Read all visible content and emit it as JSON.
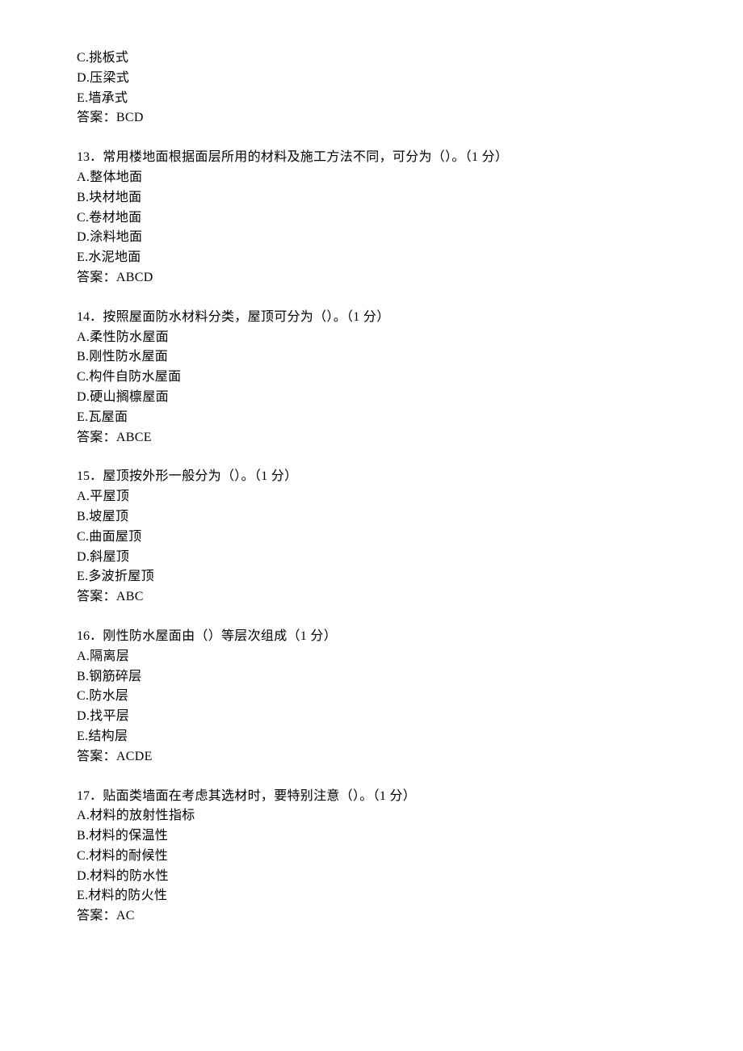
{
  "text_color": "#000000",
  "background_color": "#ffffff",
  "base_fontsize": 16,
  "font_family": "SimSun",
  "q12_tail": {
    "options": [
      "C.挑板式",
      "D.压梁式",
      "E.墙承式"
    ],
    "answer": "答案：BCD"
  },
  "questions": [
    {
      "number": "13",
      "stem": "．常用楼地面根据面层所用的材料及施工方法不同，可分为（）。（1 分）",
      "options": [
        "A.整体地面",
        "B.块材地面",
        "C.卷材地面",
        "D.涂料地面",
        "E.水泥地面"
      ],
      "answer": "答案：ABCD"
    },
    {
      "number": "14",
      "stem": "．按照屋面防水材料分类，屋顶可分为（）。（1 分）",
      "options": [
        "A.柔性防水屋面",
        "B.刚性防水屋面",
        "C.构件自防水屋面",
        "D.硬山搁檩屋面",
        "E.瓦屋面"
      ],
      "answer": "答案：ABCE"
    },
    {
      "number": "15",
      "stem": "．屋顶按外形一般分为（）。（1 分）",
      "options": [
        "A.平屋顶",
        "B.坡屋顶",
        "C.曲面屋顶",
        "D.斜屋顶",
        "E.多波折屋顶"
      ],
      "answer": "答案：ABC"
    },
    {
      "number": "16",
      "stem": "．刚性防水屋面由（）等层次组成（1 分）",
      "options": [
        "A.隔离层",
        "B.钢筋碎层",
        "C.防水层",
        "D.找平层",
        "E.结构层"
      ],
      "answer": "答案：ACDE"
    },
    {
      "number": "17",
      "stem": "．贴面类墙面在考虑其选材时，要特别注意（）。（1 分）",
      "options": [
        "A.材料的放射性指标",
        "B.材料的保温性",
        "C.材料的耐候性",
        "D.材料的防水性",
        "E.材料的防火性"
      ],
      "answer": "答案：AC"
    }
  ]
}
